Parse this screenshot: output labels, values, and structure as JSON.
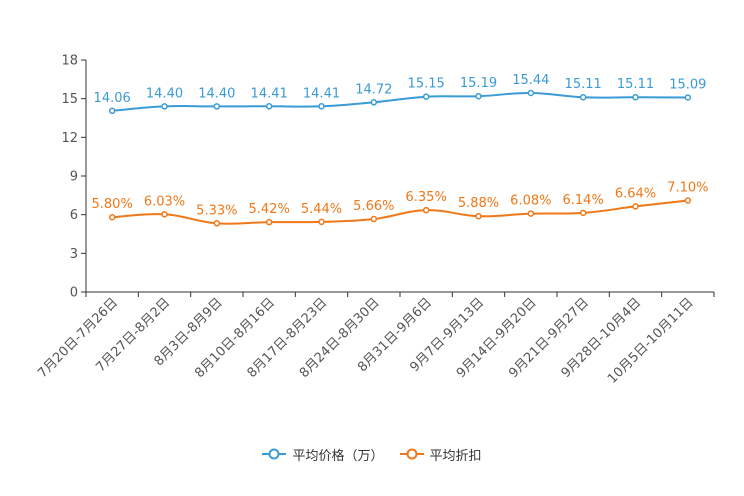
{
  "chart_data": {
    "type": "line",
    "categories": [
      "7月20日-7月26日",
      "7月27日-8月2日",
      "8月3日-8月9日",
      "8月10日-8月16日",
      "8月17日-8月23日",
      "8月24日-8月30日",
      "8月31日-9月6日",
      "9月7日-9月13日",
      "9月14日-9月20日",
      "9月21日-9月27日",
      "9月28日-10月4日",
      "10月5日-10月11日"
    ],
    "series": [
      {
        "name": "平均价格（万）",
        "color": "#3a9bd5",
        "values": [
          14.06,
          14.4,
          14.4,
          14.41,
          14.41,
          14.72,
          15.15,
          15.19,
          15.44,
          15.11,
          15.11,
          15.09
        ],
        "labels": [
          "14.06",
          "14.40",
          "14.40",
          "14.41",
          "14.41",
          "14.72",
          "15.15",
          "15.19",
          "15.44",
          "15.11",
          "15.11",
          "15.09"
        ]
      },
      {
        "name": "平均折扣",
        "color": "#f07818",
        "values": [
          5.8,
          6.03,
          5.33,
          5.42,
          5.44,
          5.66,
          6.35,
          5.88,
          6.08,
          6.14,
          6.64,
          7.1
        ],
        "labels": [
          "5.80%",
          "6.03%",
          "5.33%",
          "5.42%",
          "5.44%",
          "5.66%",
          "6.35%",
          "5.88%",
          "6.08%",
          "6.14%",
          "6.64%",
          "7.10%"
        ]
      }
    ],
    "ylim": [
      0,
      18
    ],
    "yticks": [
      0,
      3,
      6,
      9,
      12,
      15,
      18
    ],
    "ytick_labels": [
      "0",
      "3",
      "6",
      "9",
      "12",
      "15",
      "18"
    ],
    "title": "",
    "xlabel": "",
    "ylabel": "",
    "grid": false,
    "legend_position": "bottom-center"
  }
}
